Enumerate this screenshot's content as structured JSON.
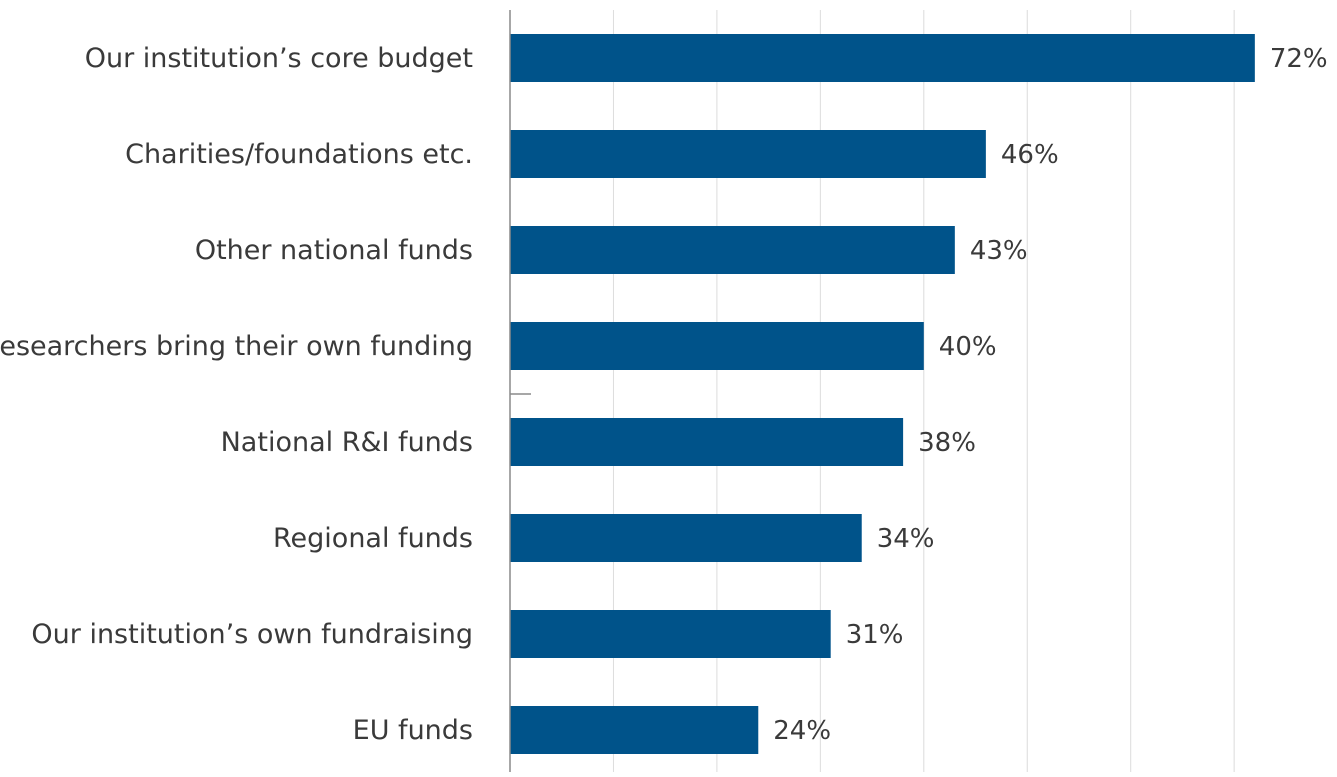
{
  "chart_data": {
    "type": "bar",
    "orientation": "horizontal",
    "categories": [
      "Our institution’s core budget",
      "Charities/foundations etc.",
      "Other national funds",
      "Researchers bring their own funding",
      "National R&I funds",
      "Regional funds",
      "Our institution’s own fundraising",
      "EU funds"
    ],
    "values": [
      72,
      46,
      43,
      40,
      38,
      34,
      31,
      24
    ],
    "value_labels": [
      "72%",
      "46%",
      "43%",
      "40%",
      "38%",
      "34%",
      "31%",
      "24%"
    ],
    "xlim": [
      0,
      80
    ],
    "grid": "vertical",
    "grid_step": 10,
    "legend": "none",
    "bar_color": "#00538a"
  }
}
